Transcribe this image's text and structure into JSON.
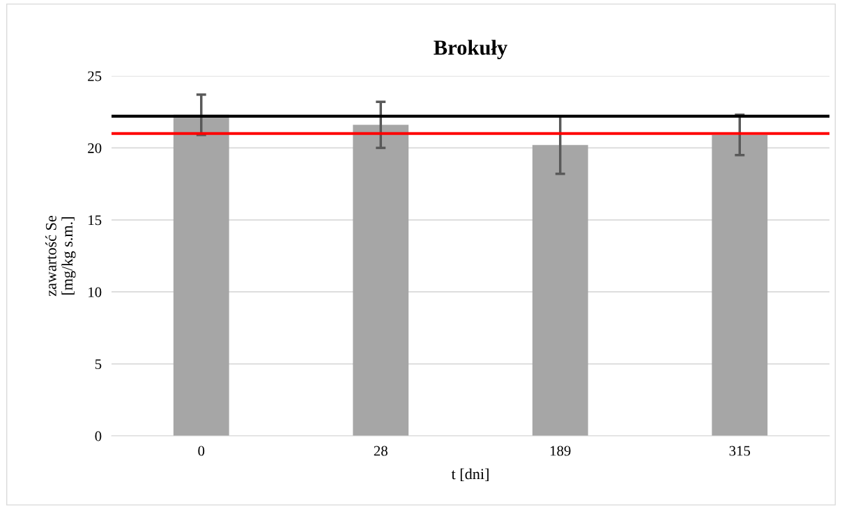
{
  "chart_data": {
    "type": "bar",
    "title": "Brokuły",
    "xlabel": "t [dni]",
    "ylabel": "zawartość Se\n[mg/kg s.m.]",
    "categories": [
      "0",
      "28",
      "189",
      "315"
    ],
    "values": [
      22.3,
      21.6,
      20.2,
      20.9
    ],
    "errors": [
      1.4,
      1.6,
      2.0,
      1.4
    ],
    "color": "#a6a6a6",
    "ylim": [
      0,
      25
    ],
    "yticks": [
      0,
      5,
      10,
      15,
      20,
      25
    ],
    "grid": "y",
    "ref_lines": [
      {
        "axis": "y",
        "value": 22.2,
        "color": "#000000"
      },
      {
        "axis": "y",
        "value": 21.0,
        "color": "#ff0000"
      }
    ]
  }
}
